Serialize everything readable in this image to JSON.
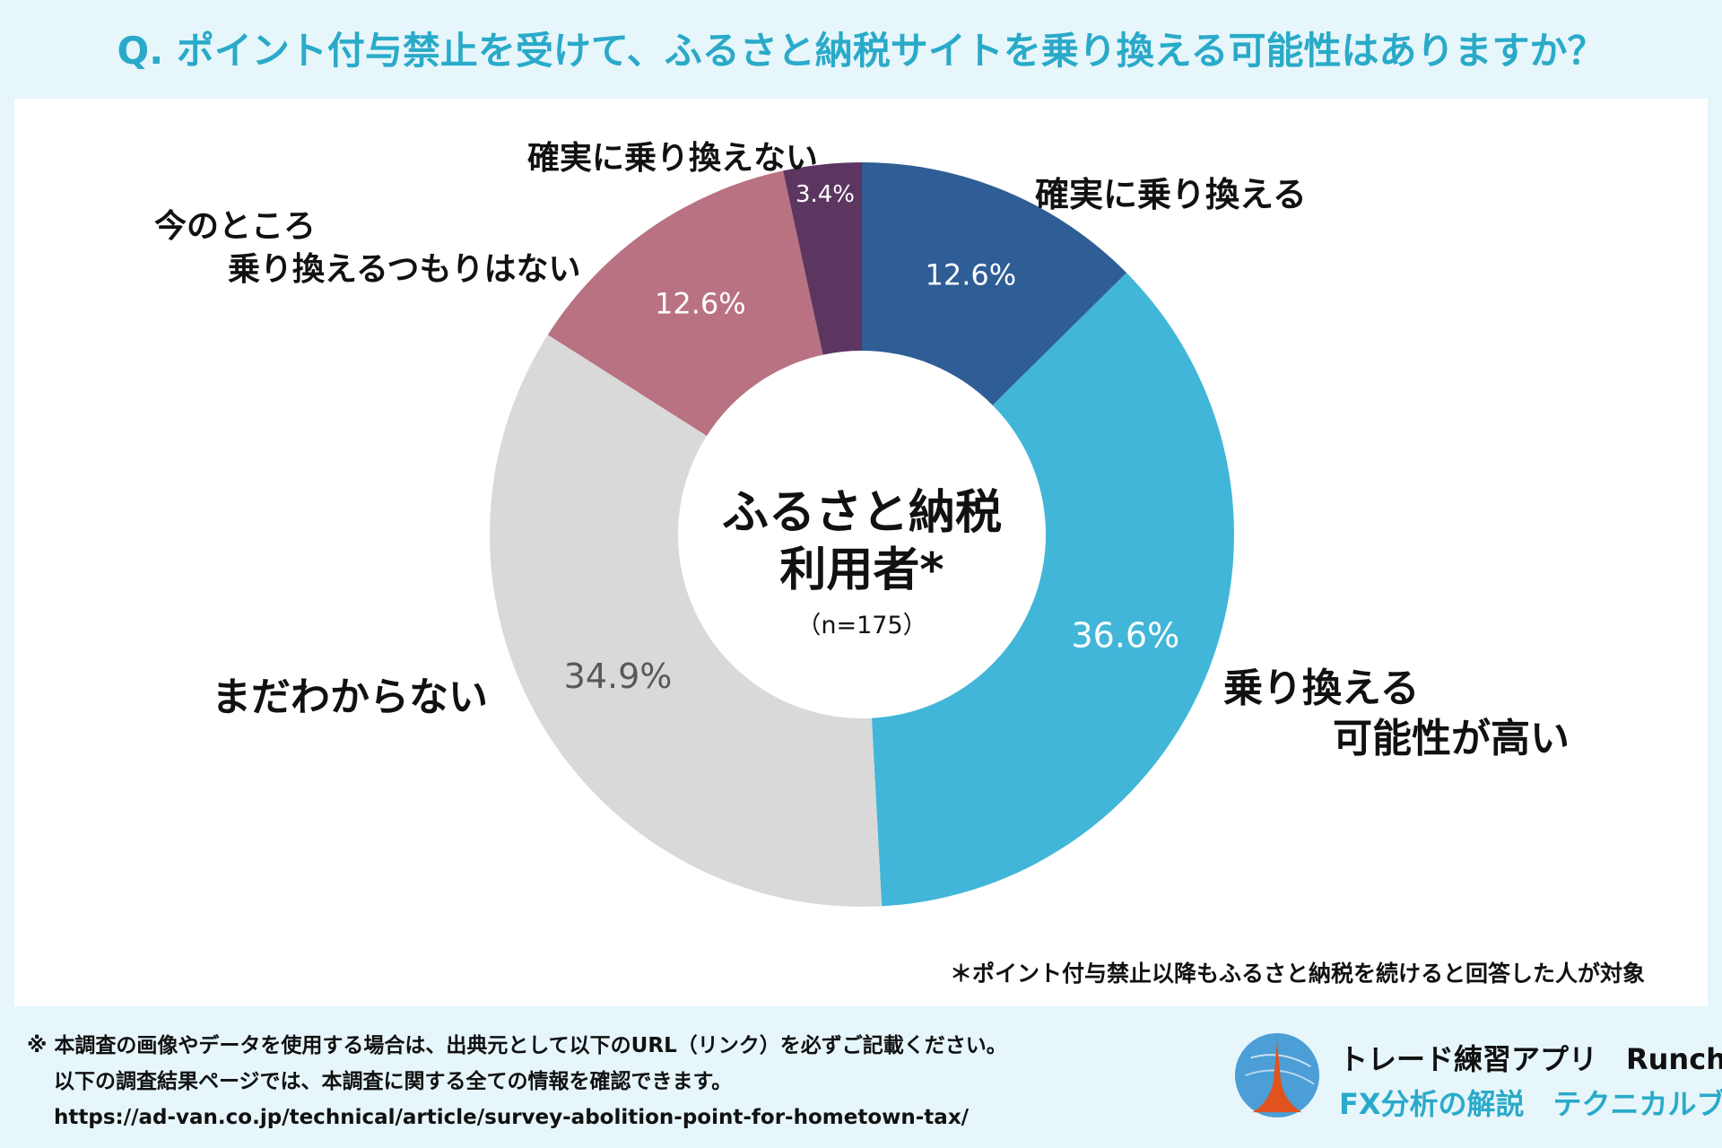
{
  "title": "Q. ポイント付与禁止を受けて、ふるさと納税サイトを乗り換える可能性はありますか？",
  "chart_data": {
    "type": "donut",
    "center_label": [
      "ふるさと納税",
      "利用者*"
    ],
    "center_sublabel": "（n=175）",
    "slices": [
      {
        "name": "確実に乗り換える",
        "value": 12.6,
        "value_label": "12.6%",
        "color": "#2f5d95",
        "text_color": "#ffffff"
      },
      {
        "name": "乗り換える可能性が高い",
        "value": 36.6,
        "value_label": "36.6%",
        "color": "#41b6d8",
        "text_color": "#ffffff"
      },
      {
        "name": "まだわからない",
        "value": 34.9,
        "value_label": "34.9%",
        "color": "#d9d9d9",
        "text_color": "#595959"
      },
      {
        "name": "今のところ乗り換えるつもりはない",
        "value": 12.6,
        "value_label": "12.6%",
        "color": "#b97282",
        "text_color": "#ffffff"
      },
      {
        "name": "確実に乗り換えない",
        "value": 3.4,
        "value_label": "3.4%",
        "color": "#5c3661",
        "text_color": "#ffffff"
      }
    ]
  },
  "labels": {
    "kakujitsu_norikaeru": "確実に乗り換える",
    "kanousei_1": "乗り換える",
    "kanousei_2": "可能性が高い",
    "mada": "まだわからない",
    "imano_1": "今のところ",
    "imano_2": "乗り換えるつもりはない",
    "kakujitsu_nai": "確実に乗り換えない"
  },
  "footnote": "＊ポイント付与禁止以降もふるさと納税を続けると回答した人が対象",
  "notice": {
    "line1": "※ 本調査の画像やデータを使用する場合は、出典元として以下のURL（リンク）を必ずご記載ください。",
    "line2": "以下の調査結果ページでは、本調査に関する全ての情報を確認できます。",
    "url": "https://ad-van.co.jp/technical/article/survey-abolition-point-for-hometown-tax/"
  },
  "brand": {
    "name": "トレード練習アプリ　Runcha",
    "sub": "FX分析の解説　テクニカルブック"
  }
}
